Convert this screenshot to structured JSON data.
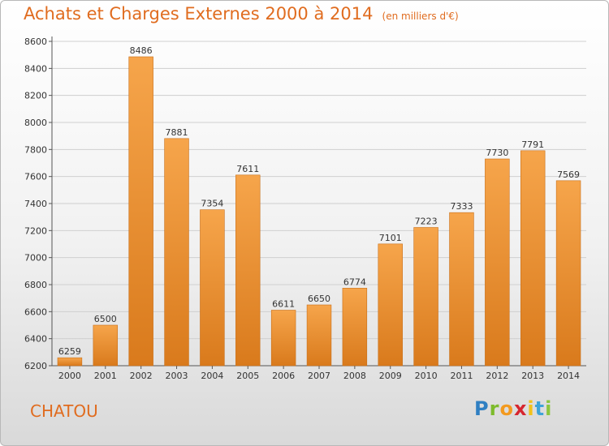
{
  "title": "Achats et Charges Externes 2000 à 2014",
  "unit_note": "(en milliers d'€)",
  "city": "CHATOU",
  "logo_text": "Proxiti",
  "colors": {
    "bar_top": "#f6a54b",
    "bar_bottom": "#d97a1c",
    "accent": "#e06c1f"
  },
  "chart_data": {
    "type": "bar",
    "title": "Achats et Charges Externes 2000 à 2014",
    "categories": [
      "2000",
      "2001",
      "2002",
      "2003",
      "2004",
      "2005",
      "2006",
      "2007",
      "2008",
      "2009",
      "2010",
      "2011",
      "2012",
      "2013",
      "2014"
    ],
    "values": [
      6259,
      6500,
      8486,
      7881,
      7354,
      7611,
      6611,
      6650,
      6774,
      7101,
      7223,
      7333,
      7730,
      7791,
      7569
    ],
    "ylim": [
      6200,
      8600
    ],
    "yticks": [
      6200,
      6400,
      6600,
      6800,
      7000,
      7200,
      7400,
      7600,
      7800,
      8000,
      8200,
      8400,
      8600
    ],
    "grid": true,
    "xlabel": "",
    "ylabel": ""
  }
}
